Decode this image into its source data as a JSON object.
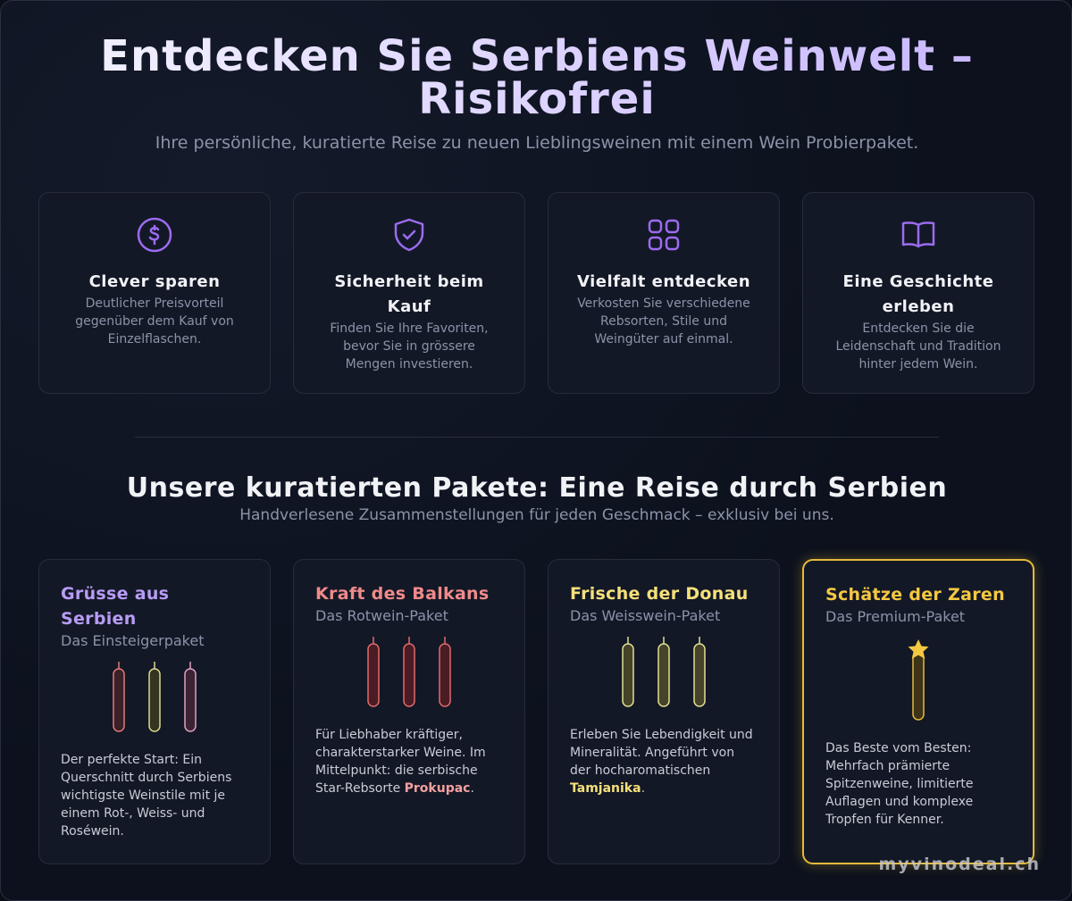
{
  "header": {
    "title": "Entdecken Sie Serbiens Weinwelt – Risikofrei",
    "subtitle": "Ihre persönliche, kuratierte Reise zu neuen Lieblingsweinen mit einem Wein Probierpaket."
  },
  "features": [
    {
      "title": "Clever sparen",
      "description": "Deutlicher Preisvorteil gegenüber dem Kauf von Einzelflaschen."
    },
    {
      "title": "Sicherheit beim Kauf",
      "description": "Finden Sie Ihre Favoriten, bevor Sie in grössere Mengen investieren."
    },
    {
      "title": "Vielfalt entdecken",
      "description": "Verkosten Sie verschiedene Rebsorten, Stile und Weingüter auf einmal."
    },
    {
      "title": "Eine Geschichte erleben",
      "description": "Entdecken Sie die Leidenschaft und Tradition hinter jedem Wein."
    }
  ],
  "packages_section": {
    "title": "Unsere kuratierten Pakete: Eine Reise durch Serbien",
    "subtitle": "Handverlesene Zusammenstellungen für jeden Geschmack – exklusiv bei uns."
  },
  "packages": [
    {
      "name": "Grüsse aus Serbien",
      "subtitle": "Das Einsteigerpaket",
      "description": [
        "Der perfekte Start: Ein Querschnitt durch Serbiens wichtigste Weinstile mit je einem Rot-, Weiss- und Roséwein."
      ]
    },
    {
      "name": "Kraft des Balkans",
      "subtitle": "Das Rotwein-Paket",
      "description": [
        "Für Liebhaber kräftiger, charakterstarker Weine. Im Mittelpunkt: die serbische Star-Rebsorte ",
        "Prokupac",
        "."
      ]
    },
    {
      "name": "Frische der Donau",
      "subtitle": "Das Weisswein-Paket",
      "description": [
        "Erleben Sie Lebendigkeit und Mineralität. Angeführt von der hocharomatischen ",
        "Tamjanika",
        "."
      ]
    },
    {
      "name": "Schätze der Zaren",
      "subtitle": "Das Premium-Paket",
      "description": [
        "Das Beste vom Besten: Mehrfach prämierte Spitzenweine, limitierte Auflagen und komplexe Tropfen für Kenner."
      ]
    }
  ],
  "watermark": "myvinodeal.ch"
}
